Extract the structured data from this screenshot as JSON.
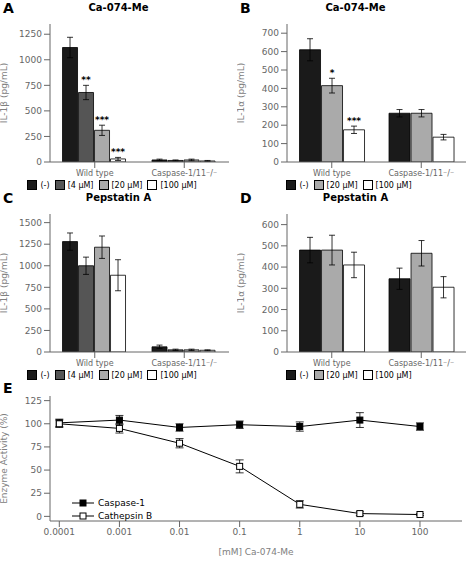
{
  "chart_data": [
    {
      "type": "bar",
      "panel_label": "A",
      "title": "Ca-074-Me",
      "ylabel": "IL-1β (pg/mL)",
      "categories": [
        "Wild type",
        "Caspase-1/11⁻/⁻"
      ],
      "series": [
        {
          "name": "(-)",
          "color": "#1a1a1a",
          "values": [
            1120,
            20
          ],
          "errors": [
            100,
            8
          ]
        },
        {
          "name": "[4 μM]",
          "color": "#555555",
          "values": [
            680,
            15
          ],
          "errors": [
            70,
            5
          ]
        },
        {
          "name": "[20 μM]",
          "color": "#aaaaaa",
          "values": [
            310,
            20
          ],
          "errors": [
            50,
            8
          ]
        },
        {
          "name": "[100 μM]",
          "color": "#ffffff",
          "values": [
            30,
            10
          ],
          "errors": [
            15,
            5
          ]
        }
      ],
      "annotations": [
        {
          "text": "**",
          "series": "[4 μM]",
          "category": "Wild type"
        },
        {
          "text": "***",
          "series": "[20 μM]",
          "category": "Wild type"
        },
        {
          "text": "***",
          "series": "[100 μM]",
          "category": "Wild type"
        }
      ],
      "ylim": [
        0,
        1350
      ],
      "yticks": [
        0,
        250,
        500,
        750,
        1000,
        1250
      ],
      "legend": "bottom",
      "grid": false
    },
    {
      "type": "bar",
      "panel_label": "B",
      "title": "Ca-074-Me",
      "ylabel": "IL-1α (pg/mL)",
      "categories": [
        "Wild type",
        "Caspase-1/11⁻/⁻"
      ],
      "series": [
        {
          "name": "(-)",
          "color": "#1a1a1a",
          "values": [
            610,
            265
          ],
          "errors": [
            60,
            20
          ]
        },
        {
          "name": "[20 μM]",
          "color": "#aaaaaa",
          "values": [
            415,
            265
          ],
          "errors": [
            40,
            20
          ]
        },
        {
          "name": "[100 μM]",
          "color": "#ffffff",
          "values": [
            175,
            135
          ],
          "errors": [
            20,
            15
          ]
        }
      ],
      "annotations": [
        {
          "text": "*",
          "series": "[20 μM]",
          "category": "Wild type"
        },
        {
          "text": "***",
          "series": "[100 μM]",
          "category": "Wild type"
        }
      ],
      "ylim": [
        0,
        750
      ],
      "yticks": [
        0,
        100,
        200,
        300,
        400,
        500,
        600,
        700
      ],
      "legend": "bottom",
      "grid": false
    },
    {
      "type": "bar",
      "panel_label": "C",
      "title": "Pepstatin A",
      "ylabel": "IL-1β (pg/mL)",
      "categories": [
        "Wild type",
        "Caspase-1/11⁻/⁻"
      ],
      "series": [
        {
          "name": "(-)",
          "color": "#1a1a1a",
          "values": [
            1280,
            60
          ],
          "errors": [
            100,
            20
          ]
        },
        {
          "name": "[4 μM]",
          "color": "#555555",
          "values": [
            1000,
            25
          ],
          "errors": [
            100,
            8
          ]
        },
        {
          "name": "[20 μM]",
          "color": "#aaaaaa",
          "values": [
            1215,
            25
          ],
          "errors": [
            130,
            8
          ]
        },
        {
          "name": "[100 μM]",
          "color": "#ffffff",
          "values": [
            890,
            20
          ],
          "errors": [
            180,
            5
          ]
        }
      ],
      "ylim": [
        0,
        1600
      ],
      "yticks": [
        0,
        250,
        500,
        750,
        1000,
        1250,
        1500
      ],
      "legend": "bottom",
      "grid": false
    },
    {
      "type": "bar",
      "panel_label": "D",
      "title": "Pepstatin A",
      "ylabel": "IL-1α (pg/mL)",
      "categories": [
        "Wild type",
        "Caspase-1/11⁻/⁻"
      ],
      "series": [
        {
          "name": "(-)",
          "color": "#1a1a1a",
          "values": [
            480,
            345
          ],
          "errors": [
            60,
            50
          ]
        },
        {
          "name": "[20 μM]",
          "color": "#aaaaaa",
          "values": [
            480,
            465
          ],
          "errors": [
            70,
            60
          ]
        },
        {
          "name": "[100 μM]",
          "color": "#ffffff",
          "values": [
            410,
            305
          ],
          "errors": [
            60,
            50
          ]
        }
      ],
      "ylim": [
        0,
        650
      ],
      "yticks": [
        0,
        100,
        200,
        300,
        400,
        500,
        600
      ],
      "legend": "bottom",
      "grid": false
    },
    {
      "type": "line",
      "panel_label": "E",
      "xlabel": "[mM] Ca-074-Me",
      "ylabel": "Enzyme Activity (%)",
      "log": "x",
      "xlim": [
        7e-05,
        500
      ],
      "xticks": [
        0.0001,
        0.001,
        0.01,
        0.1,
        1,
        10,
        100
      ],
      "ylim": [
        -5,
        130
      ],
      "yticks": [
        0,
        25,
        50,
        75,
        100,
        125
      ],
      "legend": "lower left",
      "grid": false,
      "series": [
        {
          "name": "Caspase-1",
          "color": "#000000",
          "marker": "square",
          "x": [
            0.0001,
            0.001,
            0.01,
            0.1,
            1,
            10,
            100
          ],
          "values": [
            101,
            104,
            96,
            99,
            97,
            104,
            97
          ],
          "errors": [
            4,
            5,
            4,
            4,
            5,
            8,
            4
          ]
        },
        {
          "name": "Cathepsin B",
          "color": "#000000",
          "marker": "square-open",
          "x": [
            0.0001,
            0.001,
            0.01,
            0.1,
            1,
            10,
            100
          ],
          "values": [
            100,
            95,
            79,
            54,
            13,
            3,
            2
          ],
          "errors": [
            4,
            5,
            5,
            7,
            4,
            2,
            1
          ]
        }
      ]
    }
  ]
}
